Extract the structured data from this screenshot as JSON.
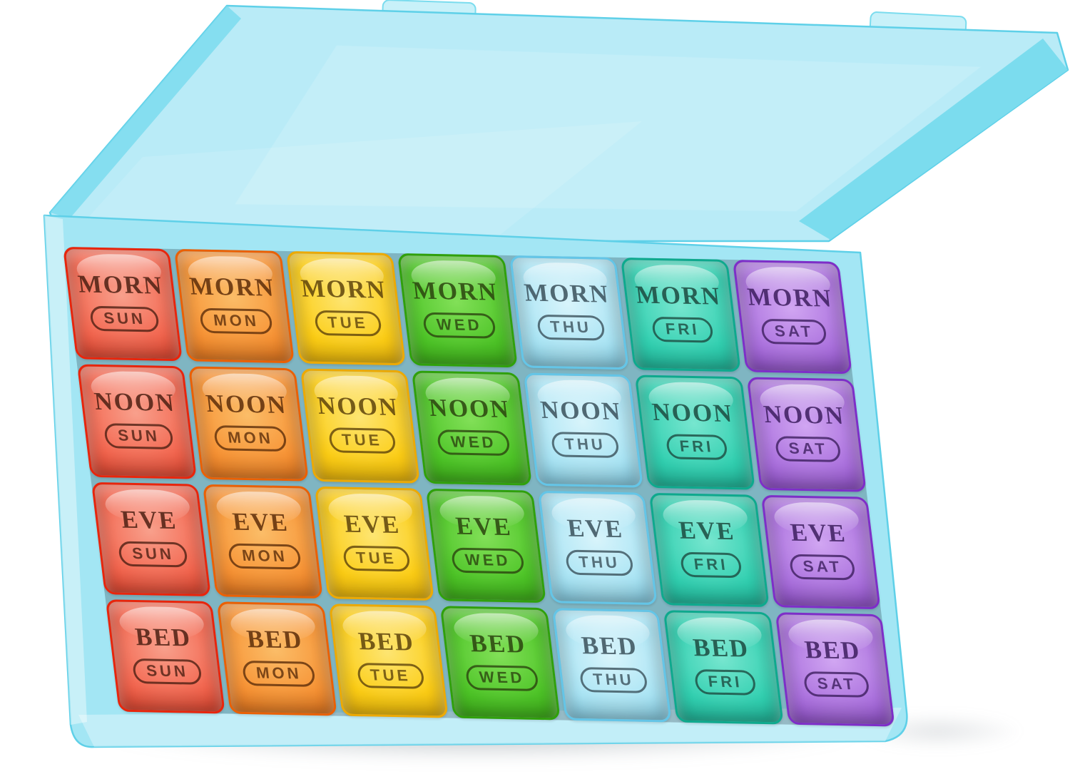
{
  "scene": {
    "background": "#ffffff"
  },
  "case": {
    "lid": "#b9ebf7",
    "lid_rim": "#7bdcee",
    "latch": "#c8f1f9",
    "base": "#a3e6f4",
    "stroke": "#5fd0e8",
    "shadow": "rgba(95,110,120,0.38)"
  },
  "grid": {
    "rows": [
      "MORN",
      "NOON",
      "EVE",
      "BED"
    ],
    "columns": [
      {
        "day": "SUN",
        "edge": "#e8250c",
        "face": "#f3664f",
        "glow": "#f8a08c",
        "text": "#4d2013"
      },
      {
        "day": "MON",
        "edge": "#ea6004",
        "face": "#f79335",
        "glow": "#fbbd68",
        "text": "#5c2d0a"
      },
      {
        "day": "TUE",
        "edge": "#eda902",
        "face": "#fccd15",
        "glow": "#fde572",
        "text": "#5d430c"
      },
      {
        "day": "WED",
        "edge": "#30a00b",
        "face": "#4dc427",
        "glow": "#82e058",
        "text": "#2b430f"
      },
      {
        "day": "THU",
        "edge": "#64c5e7",
        "face": "#a9e4f4",
        "glow": "#d8f4fb",
        "text": "#3a505b"
      },
      {
        "day": "FRI",
        "edge": "#0ea98d",
        "face": "#31cfb0",
        "glow": "#77e6cf",
        "text": "#1d4a40"
      },
      {
        "day": "SAT",
        "edge": "#7e2ec8",
        "face": "#aa70dd",
        "glow": "#d1a6f2",
        "text": "#3d1e5e"
      }
    ]
  }
}
